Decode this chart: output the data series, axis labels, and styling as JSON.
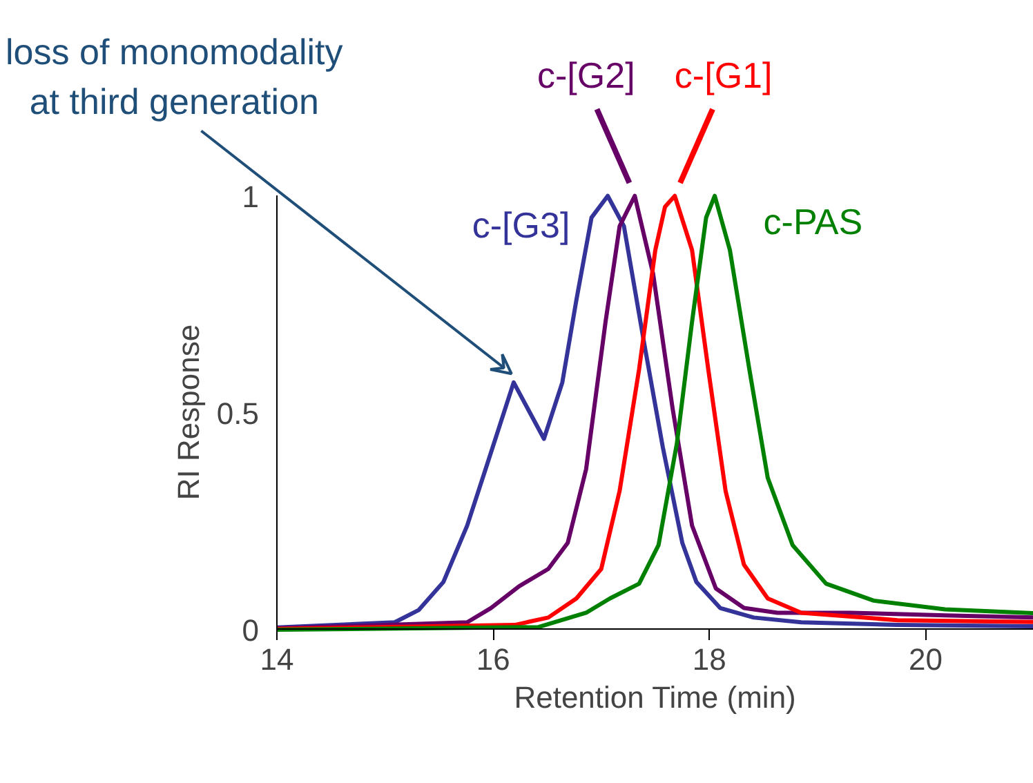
{
  "chart_data": {
    "type": "line",
    "xlabel": "Retention Time (min)",
    "ylabel": "RI Response",
    "xlim": [
      14,
      21
    ],
    "ylim": [
      0,
      1
    ],
    "xticks": [
      14,
      16,
      18,
      20
    ],
    "yticks": [
      0,
      0.5,
      1
    ],
    "grid": false,
    "series": [
      {
        "name": "c-[G3]",
        "color": "#333399",
        "x": [
          14,
          15.09,
          15.31,
          15.54,
          15.76,
          15.93,
          16.19,
          16.47,
          16.64,
          16.77,
          16.91,
          17.06,
          17.21,
          17.39,
          17.57,
          17.75,
          17.88,
          18.1,
          18.41,
          18.85,
          19.74,
          21
        ],
        "values": [
          0.005,
          0.017,
          0.045,
          0.11,
          0.24,
          0.37,
          0.57,
          0.44,
          0.57,
          0.76,
          0.95,
          1.0,
          0.93,
          0.67,
          0.42,
          0.2,
          0.11,
          0.05,
          0.028,
          0.017,
          0.011,
          0.008
        ]
      },
      {
        "name": "c-[G2]",
        "color": "#660066",
        "x": [
          14,
          15.76,
          15.98,
          16.24,
          16.51,
          16.69,
          16.86,
          17.04,
          17.17,
          17.31,
          17.48,
          17.66,
          17.84,
          18.06,
          18.32,
          18.63,
          19.3,
          20.18,
          21
        ],
        "values": [
          0.003,
          0.017,
          0.05,
          0.1,
          0.14,
          0.2,
          0.37,
          0.71,
          0.93,
          1.0,
          0.82,
          0.51,
          0.24,
          0.095,
          0.05,
          0.039,
          0.039,
          0.033,
          0.028
        ]
      },
      {
        "name": "c-[G1]",
        "color": "#ff0000",
        "x": [
          14,
          16.2,
          16.51,
          16.77,
          17.0,
          17.17,
          17.35,
          17.5,
          17.59,
          17.68,
          17.84,
          17.99,
          18.15,
          18.32,
          18.54,
          18.85,
          19.74,
          20.62,
          21
        ],
        "values": [
          0.002,
          0.011,
          0.028,
          0.072,
          0.14,
          0.32,
          0.6,
          0.875,
          0.975,
          1.0,
          0.875,
          0.6,
          0.32,
          0.15,
          0.072,
          0.039,
          0.022,
          0.019,
          0.018
        ]
      },
      {
        "name": "c-PAS",
        "color": "#008000",
        "x": [
          14,
          16.42,
          16.86,
          17.08,
          17.35,
          17.53,
          17.7,
          17.84,
          17.97,
          18.05,
          18.19,
          18.37,
          18.54,
          18.77,
          19.08,
          19.52,
          20.18,
          21
        ],
        "values": [
          0,
          0.006,
          0.039,
          0.072,
          0.106,
          0.195,
          0.43,
          0.71,
          0.95,
          1.0,
          0.875,
          0.6,
          0.35,
          0.195,
          0.106,
          0.067,
          0.047,
          0.038
        ]
      }
    ],
    "annotations": [
      {
        "text": "loss of monomodality at third generation",
        "x": 16.19,
        "y": 0.57
      }
    ]
  }
}
